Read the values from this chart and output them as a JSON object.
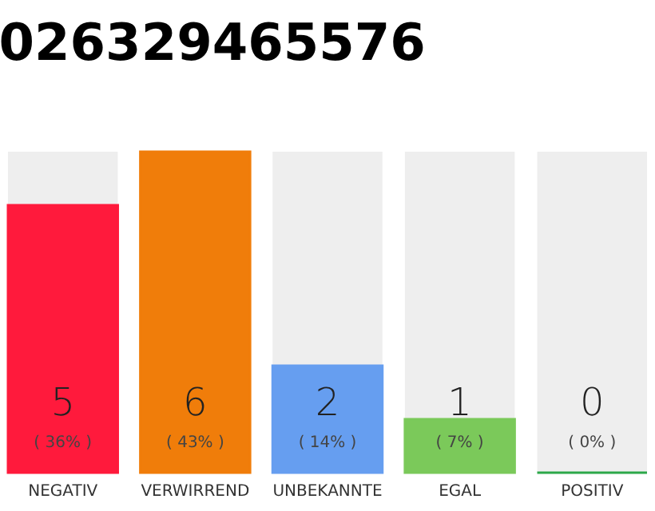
{
  "chart_data": {
    "type": "bar",
    "title": "026329465576",
    "categories": [
      "NEGATIV",
      "VERWIRREND",
      "UNBEKANNTE",
      "EGAL",
      "POSITIV"
    ],
    "values": [
      5,
      6,
      2,
      1,
      0
    ],
    "colors": [
      "#ff1a3c",
      "#f07d0a",
      "#669ef0",
      "#7bc95a",
      "#2ca84a"
    ],
    "data_labels": true,
    "annotations": [
      "( 36% )",
      "( 43% )",
      "( 14% )",
      "( 7% )",
      "( 0% )"
    ],
    "tick_labels": "x",
    "grid": false
  }
}
